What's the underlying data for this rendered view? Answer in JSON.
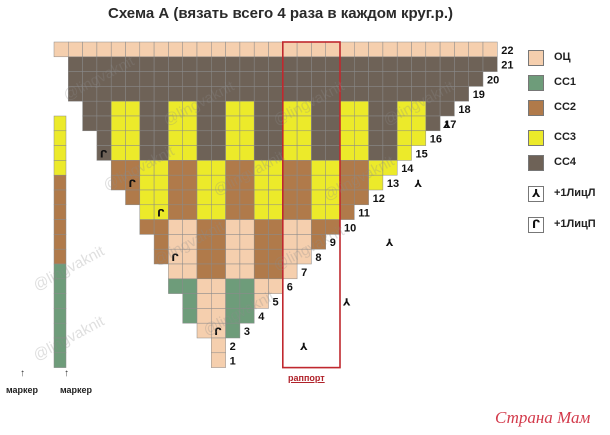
{
  "title": "Схема А (вязать всего 4 раза в каждом круг.р.)",
  "row_numbers": [
    "22",
    "21",
    "20",
    "19",
    "18",
    "17",
    "16",
    "15",
    "14",
    "13",
    "12",
    "11",
    "10",
    "9",
    "8",
    "7",
    "6",
    "5",
    "4",
    "3",
    "2",
    "1"
  ],
  "legend": [
    {
      "label": "ОЦ",
      "color": "#f5cfae"
    },
    {
      "label": "СС1",
      "color": "#6e9c7a"
    },
    {
      "label": "СС2",
      "color": "#b07a4a"
    },
    {
      "label": "СС3",
      "color": "#ecea2a"
    },
    {
      "label": "СС4",
      "color": "#6e6257"
    }
  ],
  "symbols": [
    {
      "glyph": "⅄",
      "label": "+1ЛицЛ"
    },
    {
      "glyph": "ᒋ",
      "label": "+1ЛицП"
    }
  ],
  "markers": [
    "маркер",
    "маркер"
  ],
  "rapport_label": "раппорт",
  "watermark": "@lingvaknit",
  "brand": "Страна Мам"
}
